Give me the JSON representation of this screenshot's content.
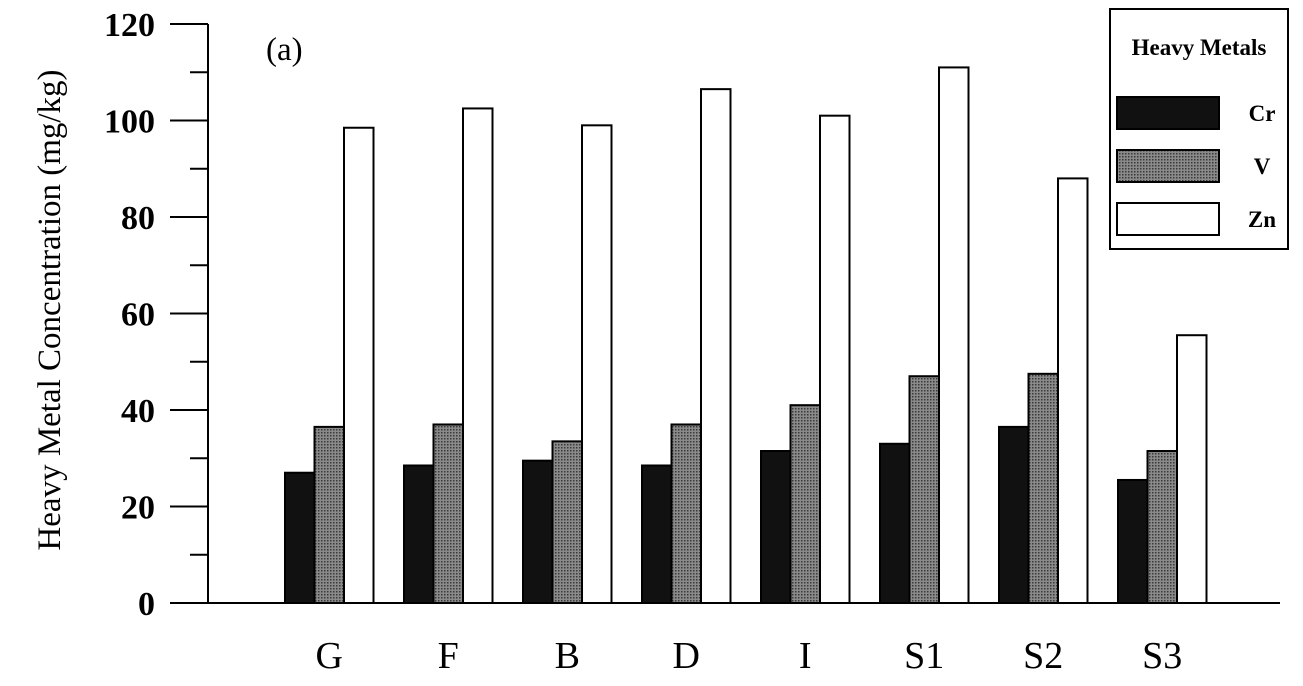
{
  "colors": {
    "axis": "#000000",
    "Cr": "#111111",
    "V": "#6e6e6e",
    "Zn": "#ffffff"
  },
  "chart_data": {
    "type": "bar",
    "panel_label": "(a)",
    "title": "",
    "xlabel": "",
    "ylabel": "Heavy Metal Concentration (mg/kg)",
    "ylim": [
      0,
      120
    ],
    "yticks": [
      0,
      20,
      40,
      60,
      80,
      100,
      120
    ],
    "grid": false,
    "legend_title": "Heavy Metals",
    "legend_position": "top-right",
    "categories": [
      "G",
      "F",
      "B",
      "D",
      "I",
      "S1",
      "S2",
      "S3"
    ],
    "series": [
      {
        "name": "Cr",
        "values": [
          27,
          28.5,
          29.5,
          28.5,
          31.5,
          33,
          36.5,
          25.5
        ]
      },
      {
        "name": "V",
        "values": [
          36.5,
          37,
          33.5,
          37,
          41,
          47,
          47.5,
          31.5
        ]
      },
      {
        "name": "Zn",
        "values": [
          98.5,
          102.5,
          99,
          106.5,
          101,
          111,
          88,
          55.5
        ]
      }
    ]
  }
}
